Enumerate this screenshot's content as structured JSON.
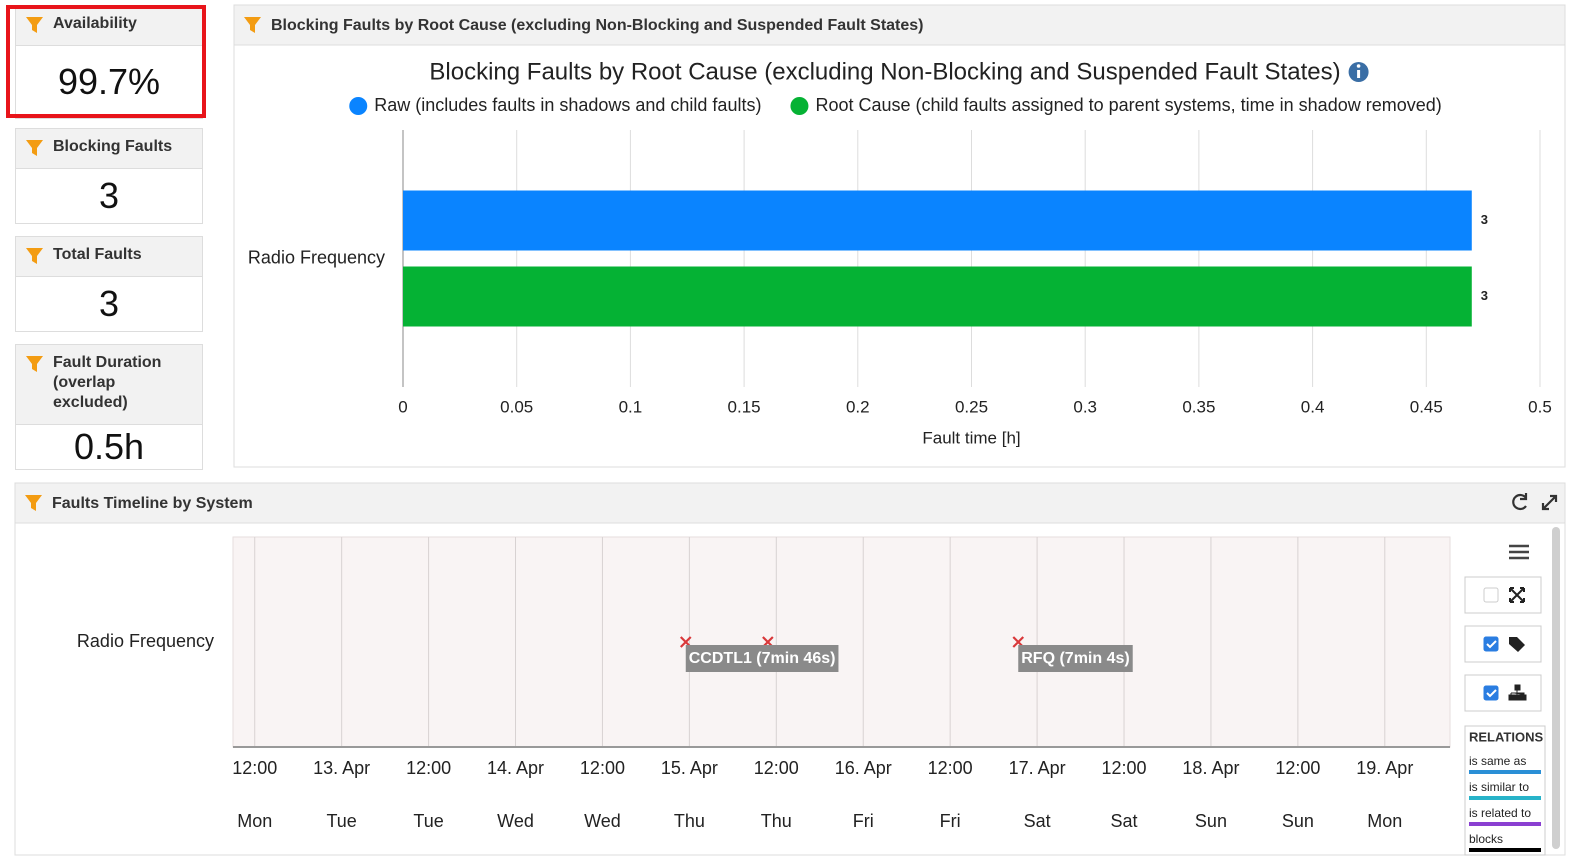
{
  "cards": [
    {
      "title": "Availability",
      "value": "99.7%",
      "highlighted": true
    },
    {
      "title": "Blocking Faults",
      "value": "3"
    },
    {
      "title": "Total Faults",
      "value": "3"
    },
    {
      "title": "Fault Duration (overlap excluded)",
      "value": "0.5h"
    }
  ],
  "bar_panel": {
    "header": "Blocking Faults by Root Cause (excluding Non-Blocking and Suspended Fault States)",
    "chart_data": {
      "type": "bar",
      "orientation": "horizontal",
      "title": "Blocking Faults by Root Cause (excluding Non-Blocking and Suspended Fault States)",
      "categories": [
        "Radio Frequency"
      ],
      "series": [
        {
          "name": "Raw (includes faults in shadows and child faults)",
          "color": "#0a84ff",
          "values": [
            0.47
          ],
          "fault_counts": [
            3
          ]
        },
        {
          "name": "Root Cause (child faults assigned to parent systems, time in shadow removed)",
          "color": "#05b234",
          "values": [
            0.47
          ],
          "fault_counts": [
            3
          ]
        }
      ],
      "xlabel": "Fault time [h]",
      "xlim": [
        0,
        0.5
      ],
      "xticks": [
        0,
        0.05,
        0.1,
        0.15,
        0.2,
        0.25,
        0.3,
        0.35,
        0.4,
        0.45,
        0.5
      ],
      "grid": true,
      "legend": "top"
    }
  },
  "timeline_panel": {
    "header": "Faults Timeline by System",
    "chart_data": {
      "type": "timeline",
      "categories": [
        "Radio Frequency"
      ],
      "xlim": [
        "04-12 09:00",
        "04-19 09:00"
      ],
      "xticks": [
        {
          "value": "04-12 12:00",
          "label": "12:00",
          "weekday": "Mon"
        },
        {
          "value": "04-13 00:00",
          "label": "13. Apr",
          "weekday": "Tue"
        },
        {
          "value": "04-13 12:00",
          "label": "12:00",
          "weekday": "Tue"
        },
        {
          "value": "04-14 00:00",
          "label": "14. Apr",
          "weekday": "Wed"
        },
        {
          "value": "04-14 12:00",
          "label": "12:00",
          "weekday": "Wed"
        },
        {
          "value": "04-15 00:00",
          "label": "15. Apr",
          "weekday": "Thu"
        },
        {
          "value": "04-15 12:00",
          "label": "12:00",
          "weekday": "Thu"
        },
        {
          "value": "04-16 00:00",
          "label": "16. Apr",
          "weekday": "Fri"
        },
        {
          "value": "04-16 12:00",
          "label": "12:00",
          "weekday": "Fri"
        },
        {
          "value": "04-17 00:00",
          "label": "17. Apr",
          "weekday": "Sat"
        },
        {
          "value": "04-17 12:00",
          "label": "12:00",
          "weekday": "Sat"
        },
        {
          "value": "04-18 00:00",
          "label": "18. Apr",
          "weekday": "Sun"
        },
        {
          "value": "04-18 12:00",
          "label": "12:00",
          "weekday": "Sun"
        },
        {
          "value": "04-19 00:00",
          "label": "19. Apr",
          "weekday": "Mon"
        }
      ],
      "events": [
        {
          "x": "04-14 23:30",
          "label": "CCDTL1 (7min 46s)"
        },
        {
          "x": "04-15 10:50"
        },
        {
          "x": "04-16 21:24",
          "label": "RFQ (7min 4s)"
        }
      ],
      "marker_color": "#d9383a",
      "grid": true
    },
    "relations": {
      "title": "RELATIONS",
      "items": [
        {
          "name": "is same as",
          "color": "#2a8fd6"
        },
        {
          "name": "is similar to",
          "color": "#27b3c9"
        },
        {
          "name": "is related to",
          "color": "#8a3fd1"
        },
        {
          "name": "blocks",
          "color": "#000000"
        }
      ]
    }
  }
}
